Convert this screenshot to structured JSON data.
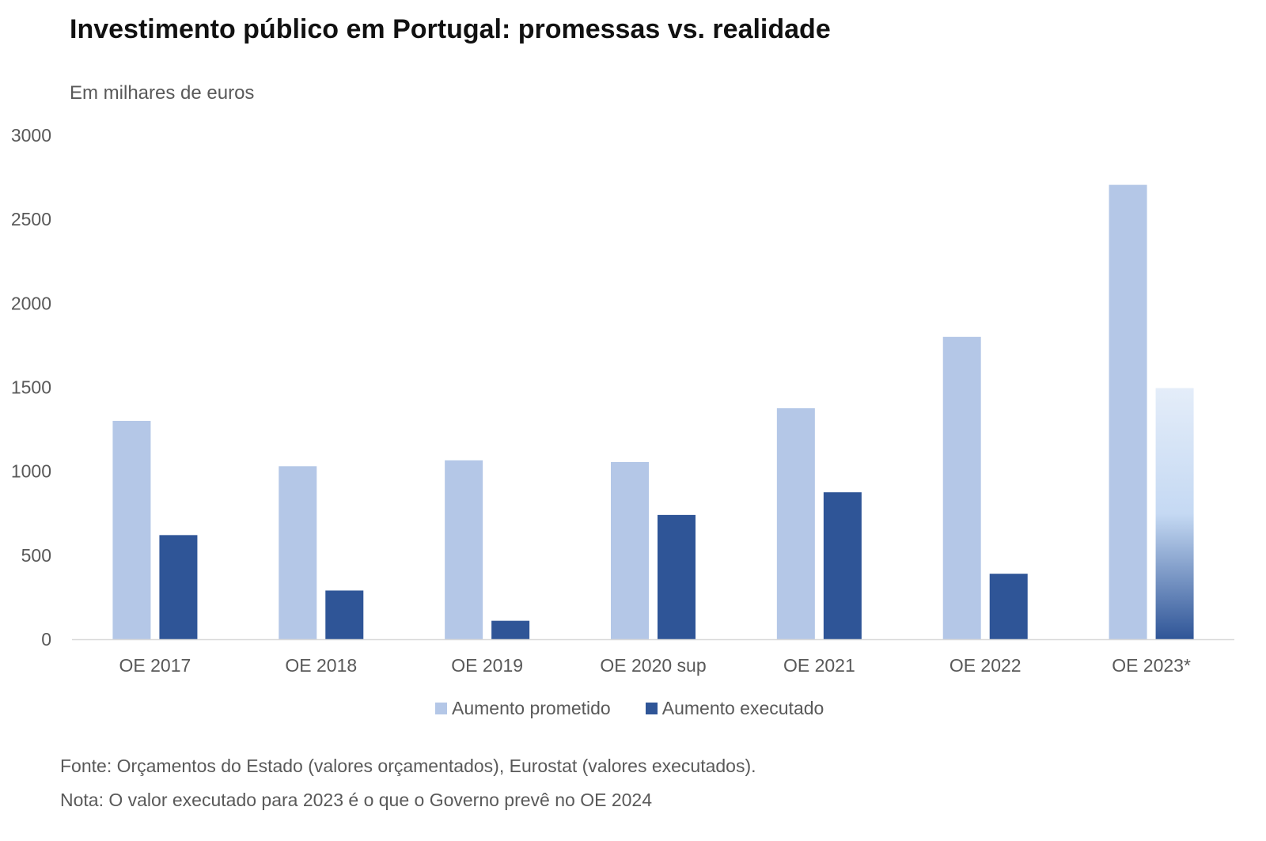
{
  "title": "Investimento público em Portugal: promessas vs. realidade",
  "subtitle": "Em milhares de euros",
  "footnotes": {
    "source": "Fonte: Orçamentos do Estado (valores orçamentados), Eurostat (valores executados).",
    "note": "Nota: O valor executado para 2023 é o que o Governo prevê no OE 2024"
  },
  "colors": {
    "promised": "#b4c7e7",
    "executed": "#2f5597",
    "projected_top": "#dce8f8",
    "axis": "#d9d9d9"
  },
  "chart_data": {
    "type": "bar",
    "categories": [
      "OE 2017",
      "OE 2018",
      "OE 2019",
      "OE 2020 sup",
      "OE 2021",
      "OE 2022",
      "OE 2023*"
    ],
    "series": [
      {
        "name": "Aumento prometido",
        "values": [
          1300,
          1030,
          1065,
          1055,
          1375,
          1800,
          2705
        ]
      },
      {
        "name": "Aumento executado",
        "values": [
          620,
          290,
          110,
          740,
          875,
          390,
          1495
        ]
      }
    ],
    "projected_last_executed": true,
    "ylim": [
      0,
      3000
    ],
    "yticks": [
      0,
      500,
      1000,
      1500,
      2000,
      2500,
      3000
    ],
    "grid": false,
    "legend_position": "bottom"
  }
}
